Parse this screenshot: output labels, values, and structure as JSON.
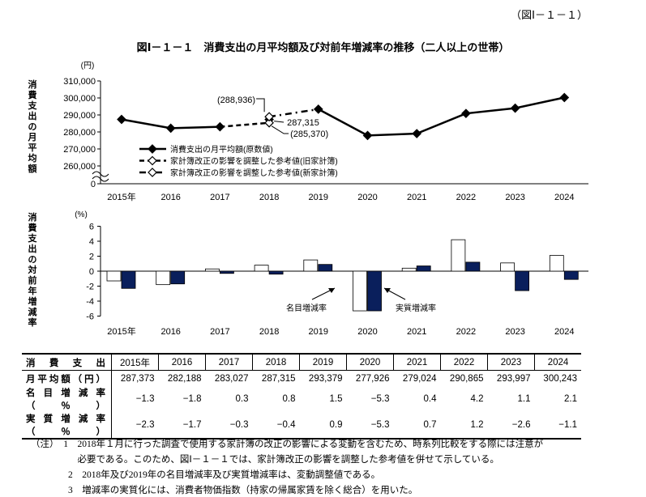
{
  "figure_ref": "（図Ⅰ－１－１）",
  "title": "図Ⅰ－１－１　消費支出の月平均額及び対前年増減率の推移（二人以上の世帯）",
  "chart_data": [
    {
      "type": "line",
      "ylabel": "消費支出の月平均額",
      "unit": "(円)",
      "categories": [
        "2015年",
        "2016",
        "2017",
        "2018",
        "2019",
        "2020",
        "2021",
        "2022",
        "2023",
        "2024"
      ],
      "yticks": [
        "310,000",
        "300,000",
        "290,000",
        "280,000",
        "270,000",
        "260,000",
        "0"
      ],
      "ylim": [
        255000,
        310000
      ],
      "axis_break": true,
      "series": [
        {
          "name": "消費支出の月平均額(原数値)",
          "values": [
            287373,
            282188,
            283027,
            287315,
            293379,
            277926,
            279024,
            290865,
            293997,
            300243
          ]
        },
        {
          "name": "家計簿改正の影響を調整した参考値(旧家計簿)",
          "x": [
            "2017",
            "2018"
          ],
          "values": [
            283027,
            285370
          ]
        },
        {
          "name": "家計簿改正の影響を調整した参考値(新家計簿)",
          "x": [
            "2018",
            "2019"
          ],
          "values": [
            288936,
            293379
          ]
        }
      ],
      "annotations": [
        "(288,936)",
        "287,315",
        "(285,370)"
      ],
      "legend": "bottom-left"
    },
    {
      "type": "bar",
      "ylabel": "消費支出の対前年増減率",
      "unit": "(%)",
      "categories": [
        "2015年",
        "2016",
        "2017",
        "2018",
        "2019",
        "2020",
        "2021",
        "2022",
        "2023",
        "2024"
      ],
      "ylim": [
        -6,
        6
      ],
      "yticks": [
        "6",
        "4",
        "2",
        "0",
        "-2",
        "-4",
        "-6"
      ],
      "series": [
        {
          "name": "名目増減率",
          "values": [
            -1.3,
            -1.8,
            0.3,
            0.8,
            1.5,
            -5.3,
            0.4,
            4.2,
            1.1,
            2.1
          ],
          "color": "#ffffff"
        },
        {
          "name": "実質増減率",
          "values": [
            -2.3,
            -1.7,
            -0.3,
            -0.4,
            0.9,
            -5.3,
            0.7,
            1.2,
            -2.6,
            -1.1
          ],
          "color": "#0a1f5c"
        }
      ]
    }
  ],
  "table": {
    "header": [
      "消　費　支　出",
      "2015年",
      "2016",
      "2017",
      "2018",
      "2019",
      "2020",
      "2021",
      "2022",
      "2023",
      "2024"
    ],
    "rows": [
      [
        "月平均額（円）",
        "287,373",
        "282,188",
        "283,027",
        "287,315",
        "293,379",
        "277,926",
        "279,024",
        "290,865",
        "293,997",
        "300,243"
      ],
      [
        "名目増減率（％）",
        "−1.3",
        "−1.8",
        "0.3",
        "0.8",
        "1.5",
        "−5.3",
        "0.4",
        "4.2",
        "1.1",
        "2.1"
      ],
      [
        "実質増減率（％）",
        "−2.3",
        "−1.7",
        "−0.3",
        "−0.4",
        "0.9",
        "−5.3",
        "0.7",
        "1.2",
        "−2.6",
        "−1.1"
      ]
    ]
  },
  "notes": [
    "（注）　1　2018年１月に行った調査で使用する家計簿の改正の影響による変動を含むため、時系列比較をする際には注意が",
    "　　　　　必要である。このため、図Ⅰ－１－１では、家計簿改正の影響を調整した参考値を併せて示している。",
    "　　　　2　2018年及び2019年の名目増減率及び実質増減率は、変動調整値である。",
    "　　　　3　増減率の実質化には、消費者物価指数（持家の帰属家賃を除く総合）を用いた。"
  ]
}
